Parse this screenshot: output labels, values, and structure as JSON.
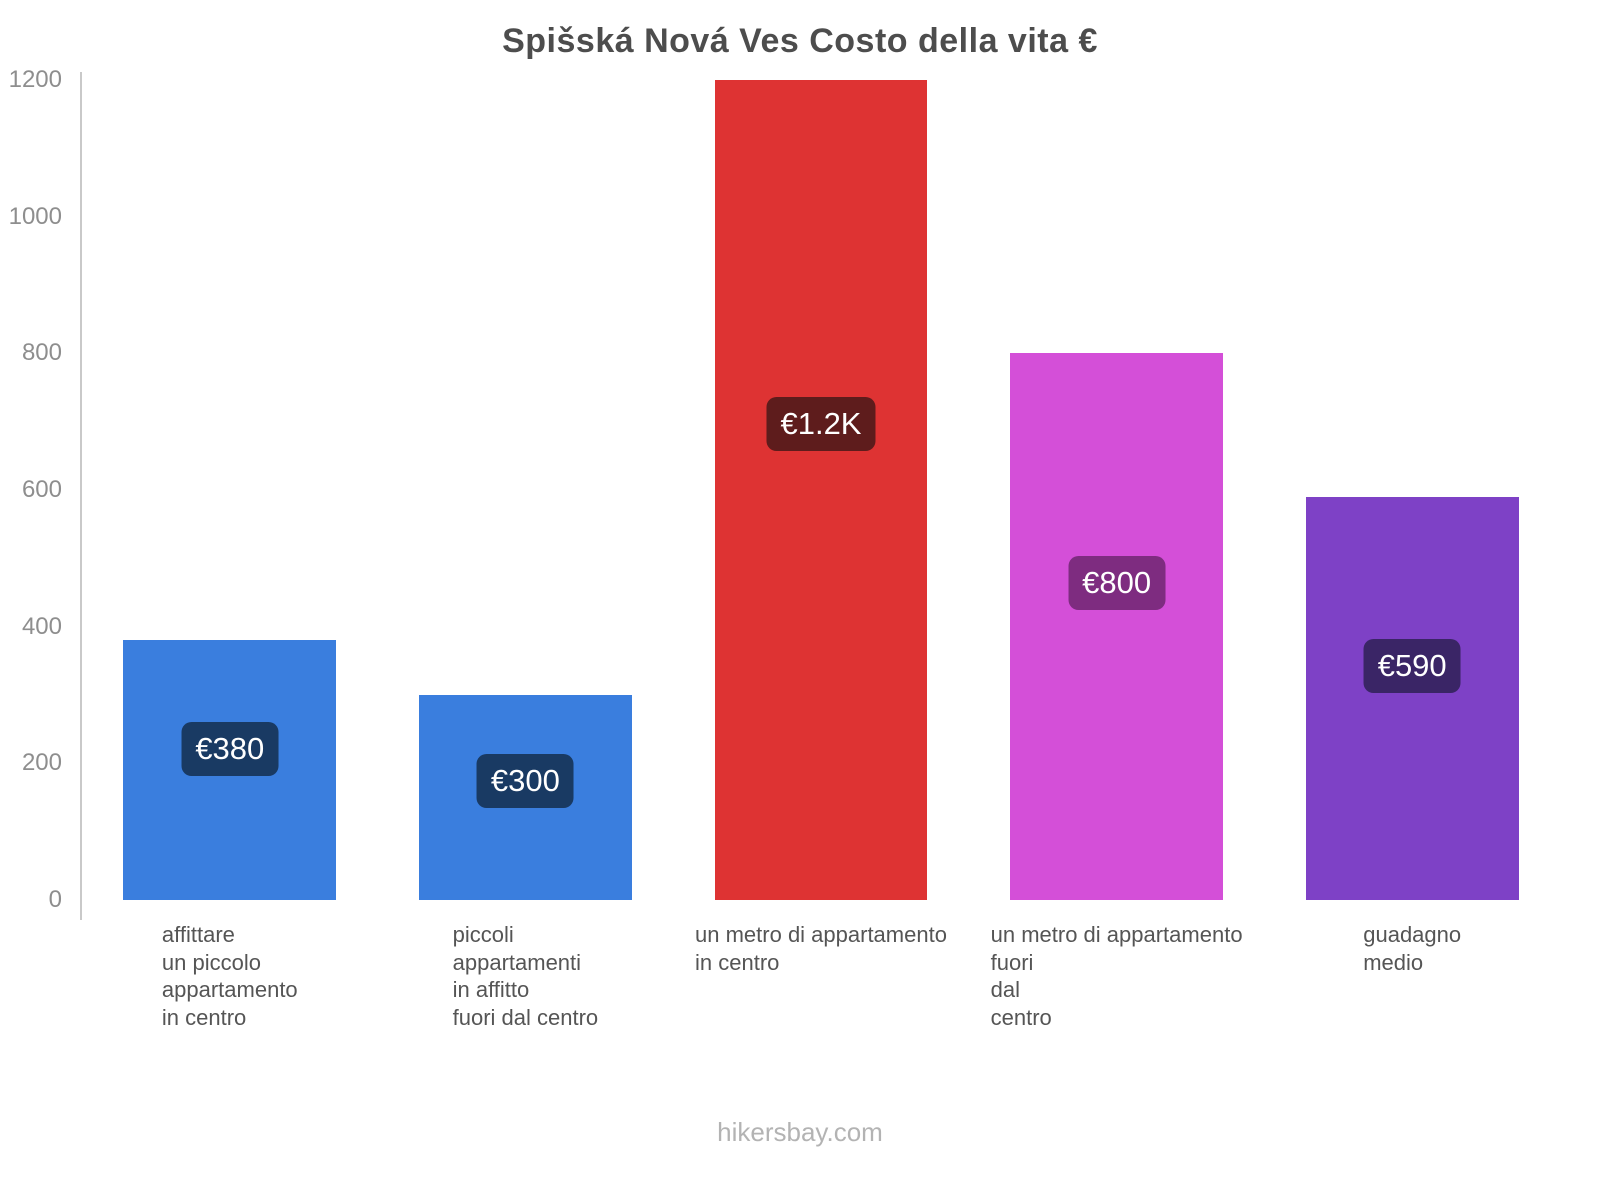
{
  "footer": "hikersbay.com",
  "chart_data": {
    "type": "bar",
    "title": "Spišská Nová Ves Costo della vita €",
    "categories": [
      "affittare\nun piccolo\nappartamento\nin centro",
      "piccoli\nappartamenti\nin affitto\nfuori dal centro",
      "un metro di appartamento\nin centro",
      "un metro di appartamento\nfuori\ndal\ncentro",
      "guadagno\nmedio"
    ],
    "values": [
      380,
      300,
      1200,
      800,
      590
    ],
    "value_labels": [
      "€380",
      "€300",
      "€1.2K",
      "€800",
      "€590"
    ],
    "bar_colors": [
      "#3a7ede",
      "#3a7ede",
      "#de3333",
      "#d44fd8",
      "#7e41c6"
    ],
    "pill_colors": [
      "#193a63",
      "#193a63",
      "#5e1c1c",
      "#7e2c80",
      "#3a2566"
    ],
    "xlabel": "",
    "ylabel": "",
    "ylim": [
      0,
      1200
    ],
    "yticks": [
      0,
      200,
      400,
      600,
      800,
      1000,
      1200
    ],
    "grid": false,
    "legend": "none",
    "currency": "EUR"
  }
}
